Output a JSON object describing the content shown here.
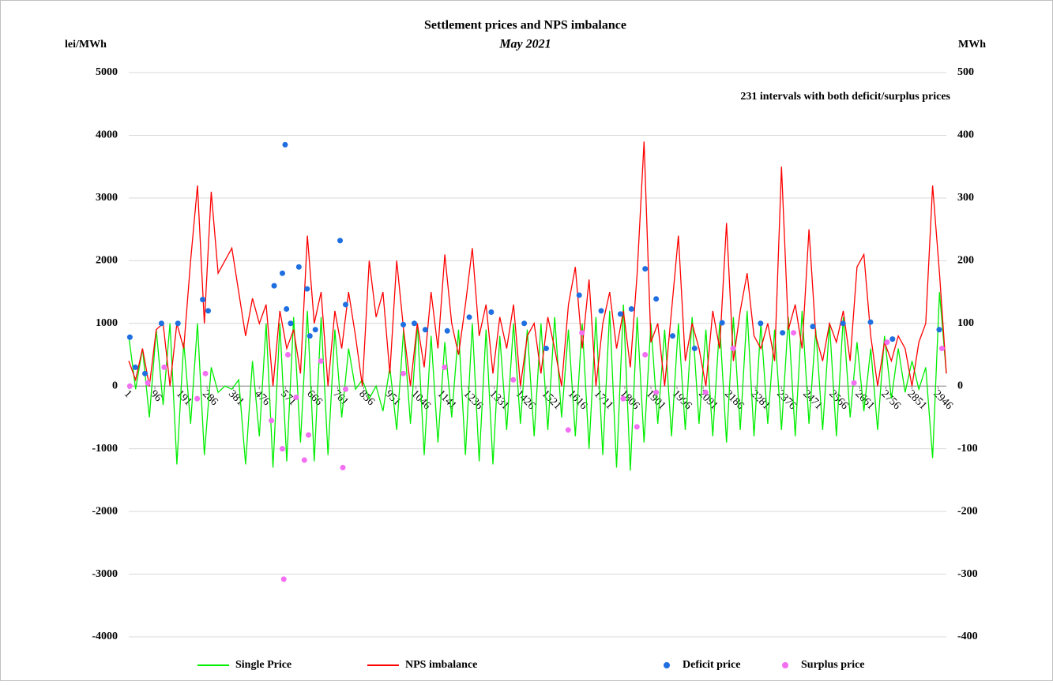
{
  "chart_data": {
    "type": "line",
    "title": "Settlement prices and NPS imbalance",
    "subtitle": "May 2021",
    "y_label": "lei/MWh",
    "y2_label": "MWh",
    "annotation": "231 intervals with both deficit/surplus prices",
    "xlim": [
      1,
      2976
    ],
    "xticks": [
      1,
      96,
      191,
      286,
      381,
      476,
      571,
      666,
      761,
      856,
      951,
      1046,
      1141,
      1236,
      1331,
      1426,
      1521,
      1616,
      1711,
      1806,
      1901,
      1996,
      2091,
      2186,
      2281,
      2376,
      2471,
      2566,
      2661,
      2756,
      2851,
      2946
    ],
    "ylim": [
      -4000,
      5000
    ],
    "yticks": [
      -4000,
      -3000,
      -2000,
      -1000,
      0,
      1000,
      2000,
      3000,
      4000,
      5000
    ],
    "y2lim": [
      -400,
      500
    ],
    "y2ticks": [
      -400,
      -300,
      -200,
      -100,
      0,
      100,
      200,
      300,
      400,
      500
    ],
    "grid": true,
    "series": [
      {
        "name": "Single Price",
        "color": "#00ee00",
        "mark": "line",
        "x": [
          1,
          26,
          51,
          76,
          101,
          126,
          151,
          176,
          201,
          226,
          251,
          276,
          301,
          326,
          351,
          376,
          401,
          426,
          451,
          476,
          501,
          526,
          551,
          576,
          601,
          626,
          651,
          676,
          701,
          726,
          751,
          776,
          801,
          826,
          851,
          876,
          901,
          926,
          951,
          976,
          1001,
          1026,
          1051,
          1076,
          1101,
          1126,
          1151,
          1176,
          1201,
          1226,
          1251,
          1276,
          1301,
          1326,
          1351,
          1376,
          1401,
          1426,
          1451,
          1476,
          1501,
          1526,
          1551,
          1576,
          1601,
          1626,
          1651,
          1676,
          1701,
          1726,
          1751,
          1776,
          1801,
          1826,
          1851,
          1876,
          1901,
          1926,
          1951,
          1976,
          2001,
          2026,
          2051,
          2076,
          2101,
          2126,
          2151,
          2176,
          2201,
          2226,
          2251,
          2276,
          2301,
          2326,
          2351,
          2376,
          2401,
          2426,
          2451,
          2476,
          2501,
          2526,
          2551,
          2576,
          2601,
          2626,
          2651,
          2676,
          2701,
          2726,
          2751,
          2776,
          2801,
          2826,
          2851,
          2876,
          2901,
          2926,
          2951,
          2976
        ],
        "values": [
          800,
          -50,
          600,
          -500,
          900,
          -300,
          1000,
          -1250,
          700,
          -600,
          1000,
          -1100,
          300,
          -100,
          0,
          -50,
          100,
          -1250,
          400,
          -800,
          1000,
          -1300,
          1000,
          -1200,
          1100,
          -900,
          1200,
          -1200,
          1100,
          -1100,
          900,
          -500,
          600,
          -50,
          100,
          -200,
          0,
          -400,
          300,
          -700,
          900,
          -600,
          1000,
          -1100,
          800,
          -900,
          700,
          -500,
          900,
          -1100,
          1000,
          -1200,
          900,
          -1250,
          800,
          -700,
          1000,
          -600,
          900,
          -800,
          1000,
          -700,
          1100,
          -500,
          900,
          -800,
          1000,
          -1000,
          1100,
          -1100,
          1200,
          -1300,
          1300,
          -1350,
          1100,
          -900,
          1000,
          -600,
          900,
          -800,
          1000,
          -700,
          1100,
          -600,
          900,
          -800,
          1000,
          -900,
          1100,
          -700,
          1200,
          -800,
          1000,
          -600,
          900,
          -700,
          1100,
          -800,
          1200,
          -600,
          900,
          -700,
          1000,
          -800,
          1100,
          -500,
          700,
          -400,
          600,
          -700,
          800,
          -200,
          600,
          -100,
          400,
          -50,
          300,
          -1150,
          1500,
          200
        ]
      },
      {
        "name": "NPS imbalance",
        "color": "#ff0000",
        "mark": "line",
        "axis": "y2",
        "x": [
          1,
          26,
          51,
          76,
          101,
          126,
          151,
          176,
          201,
          226,
          251,
          276,
          301,
          326,
          351,
          376,
          401,
          426,
          451,
          476,
          501,
          526,
          551,
          576,
          601,
          626,
          651,
          676,
          701,
          726,
          751,
          776,
          801,
          826,
          851,
          876,
          901,
          926,
          951,
          976,
          1001,
          1026,
          1051,
          1076,
          1101,
          1126,
          1151,
          1176,
          1201,
          1226,
          1251,
          1276,
          1301,
          1326,
          1351,
          1376,
          1401,
          1426,
          1451,
          1476,
          1501,
          1526,
          1551,
          1576,
          1601,
          1626,
          1651,
          1676,
          1701,
          1726,
          1751,
          1776,
          1801,
          1826,
          1851,
          1876,
          1901,
          1926,
          1951,
          1976,
          2001,
          2026,
          2051,
          2076,
          2101,
          2126,
          2151,
          2176,
          2201,
          2226,
          2251,
          2276,
          2301,
          2326,
          2351,
          2376,
          2401,
          2426,
          2451,
          2476,
          2501,
          2526,
          2551,
          2576,
          2601,
          2626,
          2651,
          2676,
          2701,
          2726,
          2751,
          2776,
          2801,
          2826,
          2851,
          2876,
          2901,
          2926,
          2951,
          2976
        ],
        "values": [
          40,
          10,
          60,
          0,
          90,
          100,
          0,
          100,
          60,
          200,
          320,
          100,
          310,
          180,
          200,
          220,
          150,
          80,
          140,
          100,
          130,
          0,
          120,
          60,
          90,
          20,
          240,
          100,
          150,
          0,
          120,
          60,
          150,
          80,
          0,
          200,
          110,
          150,
          20,
          200,
          90,
          0,
          100,
          30,
          150,
          60,
          210,
          100,
          50,
          130,
          220,
          80,
          130,
          20,
          110,
          60,
          130,
          0,
          80,
          100,
          20,
          110,
          60,
          0,
          130,
          190,
          60,
          170,
          0,
          100,
          150,
          60,
          120,
          30,
          180,
          390,
          70,
          100,
          0,
          120,
          240,
          40,
          100,
          60,
          0,
          120,
          60,
          260,
          40,
          120,
          180,
          80,
          60,
          100,
          40,
          350,
          90,
          130,
          60,
          250,
          80,
          40,
          100,
          70,
          120,
          40,
          190,
          210,
          80,
          0,
          70,
          40,
          80,
          60,
          0,
          70,
          100,
          320,
          180,
          20
        ]
      },
      {
        "name": "Deficit price",
        "color": "#1f6fe0",
        "mark": "dot",
        "x": [
          5,
          25,
          60,
          120,
          180,
          270,
          290,
          530,
          560,
          570,
          575,
          590,
          620,
          650,
          660,
          680,
          770,
          790,
          1000,
          1040,
          1080,
          1160,
          1240,
          1320,
          1440,
          1520,
          1640,
          1720,
          1790,
          1830,
          1880,
          1920,
          1980,
          2060,
          2160,
          2300,
          2380,
          2490,
          2600,
          2700,
          2780,
          2950
        ],
        "values": [
          780,
          300,
          200,
          1000,
          1000,
          1380,
          1200,
          1600,
          1800,
          3850,
          1230,
          1000,
          1900,
          1550,
          800,
          900,
          2320,
          1300,
          980,
          1000,
          900,
          880,
          1100,
          1180,
          1000,
          600,
          1450,
          1200,
          1150,
          1230,
          1870,
          1390,
          800,
          600,
          1010,
          1000,
          850,
          950,
          1000,
          1020,
          750,
          900
        ]
      },
      {
        "name": "Surplus price",
        "color": "#f26ff2",
        "mark": "dot",
        "x": [
          5,
          70,
          130,
          250,
          280,
          520,
          560,
          565,
          580,
          610,
          640,
          655,
          700,
          780,
          790,
          1000,
          1150,
          1400,
          1600,
          1650,
          1800,
          1850,
          1880,
          1920,
          2100,
          2200,
          2420,
          2640,
          2760,
          2960
        ],
        "values": [
          0,
          50,
          300,
          -200,
          200,
          -550,
          -1000,
          -3080,
          500,
          -180,
          -1180,
          -780,
          400,
          -1300,
          -50,
          200,
          300,
          100,
          -700,
          850,
          -200,
          -650,
          500,
          -100,
          -100,
          600,
          850,
          50,
          700,
          600
        ]
      }
    ]
  }
}
